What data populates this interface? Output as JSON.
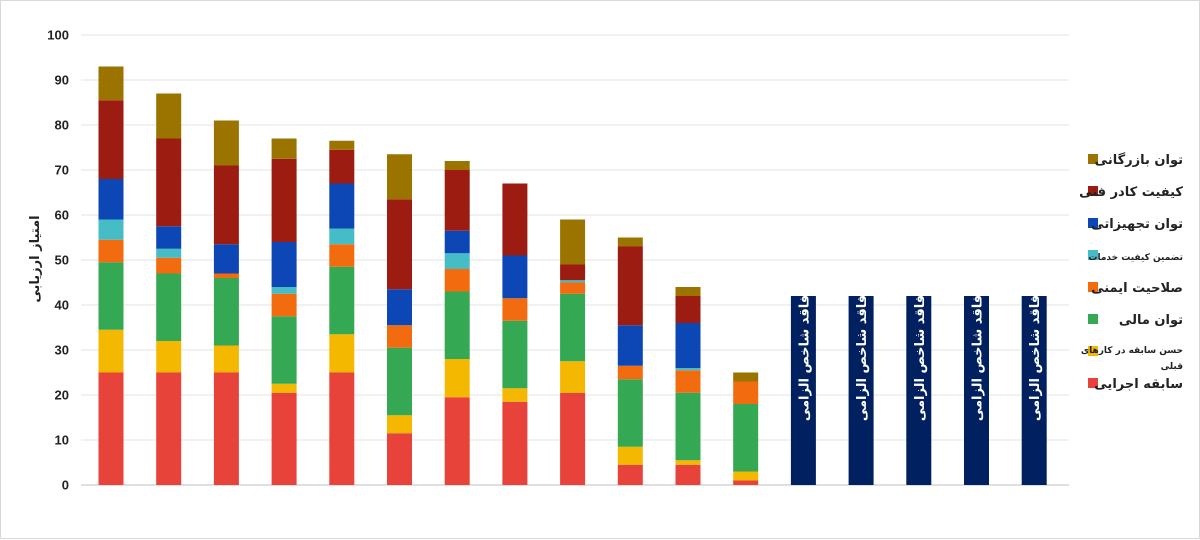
{
  "chart_data": {
    "type": "bar",
    "stacked": true,
    "ylabel": "امتیاز ارزیابی",
    "ylim": [
      0,
      100
    ],
    "yticks": [
      0,
      10,
      20,
      30,
      40,
      50,
      60,
      70,
      80,
      90,
      100
    ],
    "grid": true,
    "legend_position": "right",
    "categories": [
      "",
      "",
      "",
      "",
      "",
      "",
      "",
      "",
      "",
      "",
      "",
      "",
      "",
      "",
      "",
      "",
      ""
    ],
    "series": [
      {
        "name": "سابقه اجرایی",
        "color": "#e8433a",
        "values": [
          25,
          25,
          25,
          20.5,
          25,
          11.5,
          19.5,
          18.5,
          20.5,
          4.5,
          4.5,
          1,
          0,
          0,
          0,
          0,
          0
        ]
      },
      {
        "name": "حسن سابقه در کارهای قبلی",
        "color": "#f5b800",
        "values": [
          9.5,
          7,
          6,
          2,
          8.5,
          4,
          8.5,
          3,
          7,
          4,
          1,
          2,
          0,
          0,
          0,
          0,
          0
        ]
      },
      {
        "name": "توان مالی",
        "color": "#34a853",
        "values": [
          15,
          15,
          15,
          15,
          15,
          15,
          15,
          15,
          15,
          15,
          15,
          15,
          0,
          0,
          0,
          0,
          0
        ]
      },
      {
        "name": "صلاحیت ایمنی",
        "color": "#f26b0f",
        "values": [
          5,
          3.5,
          1,
          5,
          5,
          5,
          5,
          5,
          2.5,
          3,
          5,
          5,
          0,
          0,
          0,
          0,
          0
        ]
      },
      {
        "name": "تضمین کیفیت خدمات",
        "color": "#45bcc6",
        "values": [
          4.5,
          2,
          0,
          1.5,
          3.5,
          0,
          3.5,
          0,
          0.5,
          0,
          0.5,
          0,
          0,
          0,
          0,
          0,
          0
        ]
      },
      {
        "name": "توان تجهیزاتی",
        "color": "#0d47b5",
        "values": [
          9,
          5,
          6.5,
          10,
          10,
          8,
          5,
          9.5,
          0,
          9,
          10,
          0,
          0,
          0,
          0,
          0,
          0
        ]
      },
      {
        "name": "کیفیت کادر فنی",
        "color": "#9c1c12",
        "values": [
          17.5,
          19.5,
          17.5,
          18.5,
          7.5,
          20,
          13.5,
          16,
          3.5,
          17.5,
          6,
          0,
          0,
          0,
          0,
          0,
          0
        ]
      },
      {
        "name": "توان بازرگانی",
        "color": "#9b7400",
        "values": [
          7.5,
          10,
          10,
          4.5,
          2,
          10,
          2,
          0,
          10,
          2,
          2,
          2,
          0,
          0,
          0,
          0,
          0
        ]
      },
      {
        "name": "فاقد شاخص الزامی",
        "color": "#002060",
        "values": [
          0,
          0,
          0,
          0,
          0,
          0,
          0,
          0,
          0,
          0,
          0,
          0,
          42,
          42,
          42,
          42,
          42
        ]
      }
    ],
    "annotations": [
      "فاقد شاخص الزامی",
      "فاقد شاخص الزامی",
      "فاقد شاخص الزامی",
      "فاقد شاخص الزامی",
      "فاقد شاخص الزامی"
    ],
    "legend": [
      {
        "label": "توان بازرگانی",
        "color": "#9b7400"
      },
      {
        "label": "کیفیت کادر فنی",
        "color": "#9c1c12"
      },
      {
        "label": "توان تجهیزاتی",
        "color": "#0d47b5"
      },
      {
        "label": "تضمین کیفیت خدمات",
        "color": "#45bcc6"
      },
      {
        "label": "صلاحیت ایمنی",
        "color": "#f26b0f"
      },
      {
        "label": "توان مالی",
        "color": "#34a853"
      },
      {
        "label": "حسن سابقه در کارهای قبلی",
        "color": "#f5b800"
      },
      {
        "label": "سابقه اجرایی",
        "color": "#e8433a"
      }
    ]
  }
}
